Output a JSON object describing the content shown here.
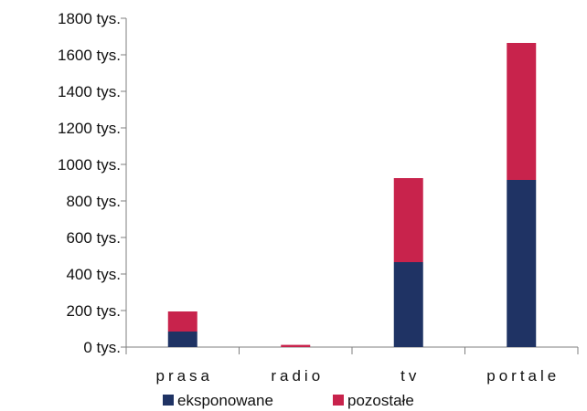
{
  "chart_data": {
    "type": "bar",
    "stacked": true,
    "categories": [
      "prasa",
      "radio",
      "tv",
      "portale"
    ],
    "series": [
      {
        "name": "eksponowane",
        "values": [
          85,
          0,
          465,
          915
        ],
        "color": "#1f3364"
      },
      {
        "name": "pozostałe",
        "values": [
          110,
          12,
          460,
          750
        ],
        "color": "#c8234c"
      }
    ],
    "y_ticks": [
      "0 tys.",
      "200 tys.",
      "400 tys.",
      "600 tys.",
      "800 tys.",
      "1000 tys.",
      "1200 tys.",
      "1400 tys.",
      "1600 tys.",
      "1800 tys."
    ],
    "ylim": [
      0,
      1800
    ],
    "y_tick_step": 200,
    "title": "",
    "xlabel": "",
    "ylabel": "",
    "grid": false,
    "legend_position": "bottom"
  }
}
